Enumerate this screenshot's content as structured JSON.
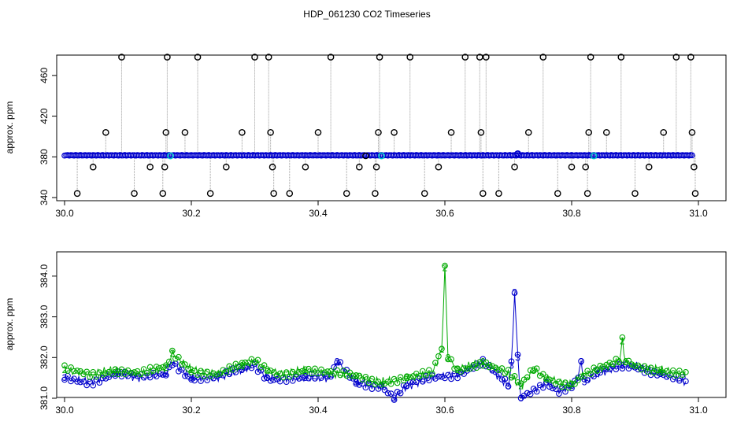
{
  "title": "HDP_061230  CO2 Timeseries",
  "chart_data": [
    {
      "type": "scatter",
      "ylabel": "approx. ppm",
      "xlabel": "",
      "xlim": [
        30.0,
        31.0
      ],
      "ylim": [
        340,
        480
      ],
      "x_ticks": [
        "30.0",
        "30.2",
        "30.4",
        "30.6",
        "30.8",
        "31.0"
      ],
      "y_ticks": [
        "340",
        "380",
        "420",
        "460"
      ],
      "grid": false,
      "colors": {
        "spikes": "#000000",
        "baseline": "#0000cc",
        "highlight": "#00c8c8",
        "drop_lines": "#9a9a9a"
      },
      "baseline_ppm": 381.5,
      "baseline_x_range": [
        30.0,
        30.99
      ],
      "spikes": [
        {
          "x": 30.02,
          "y": 344
        },
        {
          "x": 30.045,
          "y": 370
        },
        {
          "x": 30.065,
          "y": 404
        },
        {
          "x": 30.09,
          "y": 478
        },
        {
          "x": 30.11,
          "y": 344
        },
        {
          "x": 30.135,
          "y": 370
        },
        {
          "x": 30.155,
          "y": 344
        },
        {
          "x": 30.158,
          "y": 370
        },
        {
          "x": 30.16,
          "y": 404
        },
        {
          "x": 30.162,
          "y": 478
        },
        {
          "x": 30.19,
          "y": 404
        },
        {
          "x": 30.21,
          "y": 478
        },
        {
          "x": 30.23,
          "y": 344
        },
        {
          "x": 30.255,
          "y": 370
        },
        {
          "x": 30.28,
          "y": 404
        },
        {
          "x": 30.3,
          "y": 478
        },
        {
          "x": 30.322,
          "y": 478
        },
        {
          "x": 30.325,
          "y": 404
        },
        {
          "x": 30.328,
          "y": 370
        },
        {
          "x": 30.33,
          "y": 344
        },
        {
          "x": 30.355,
          "y": 344
        },
        {
          "x": 30.38,
          "y": 370
        },
        {
          "x": 30.4,
          "y": 404
        },
        {
          "x": 30.42,
          "y": 478
        },
        {
          "x": 30.445,
          "y": 344
        },
        {
          "x": 30.465,
          "y": 370
        },
        {
          "x": 30.475,
          "y": 381
        },
        {
          "x": 30.49,
          "y": 344
        },
        {
          "x": 30.492,
          "y": 370
        },
        {
          "x": 30.495,
          "y": 404
        },
        {
          "x": 30.497,
          "y": 478
        },
        {
          "x": 30.52,
          "y": 404
        },
        {
          "x": 30.545,
          "y": 478
        },
        {
          "x": 30.568,
          "y": 344
        },
        {
          "x": 30.59,
          "y": 370
        },
        {
          "x": 30.61,
          "y": 404
        },
        {
          "x": 30.632,
          "y": 478
        },
        {
          "x": 30.655,
          "y": 478
        },
        {
          "x": 30.657,
          "y": 404
        },
        {
          "x": 30.66,
          "y": 344
        },
        {
          "x": 30.665,
          "y": 478
        },
        {
          "x": 30.685,
          "y": 344
        },
        {
          "x": 30.71,
          "y": 370
        },
        {
          "x": 30.732,
          "y": 404
        },
        {
          "x": 30.755,
          "y": 478
        },
        {
          "x": 30.778,
          "y": 344
        },
        {
          "x": 30.8,
          "y": 370
        },
        {
          "x": 30.822,
          "y": 370
        },
        {
          "x": 30.825,
          "y": 344
        },
        {
          "x": 30.827,
          "y": 404
        },
        {
          "x": 30.83,
          "y": 478
        },
        {
          "x": 30.855,
          "y": 404
        },
        {
          "x": 30.878,
          "y": 478
        },
        {
          "x": 30.9,
          "y": 344
        },
        {
          "x": 30.922,
          "y": 370
        },
        {
          "x": 30.945,
          "y": 404
        },
        {
          "x": 30.965,
          "y": 478
        },
        {
          "x": 30.988,
          "y": 478
        },
        {
          "x": 30.99,
          "y": 404
        },
        {
          "x": 30.993,
          "y": 370
        },
        {
          "x": 30.995,
          "y": 344
        }
      ],
      "highlights": [
        {
          "x": 30.167,
          "y": 381
        },
        {
          "x": 30.5,
          "y": 381
        },
        {
          "x": 30.835,
          "y": 381
        }
      ]
    },
    {
      "type": "line",
      "ylabel": "approx. ppm",
      "xlabel": "",
      "xlim": [
        30.0,
        31.0
      ],
      "ylim": [
        381.0,
        384.5
      ],
      "x_ticks": [
        "30.0",
        "30.2",
        "30.4",
        "30.6",
        "30.8",
        "31.0"
      ],
      "y_ticks": [
        "381.0",
        "382.0",
        "383.0",
        "384.0"
      ],
      "grid": false,
      "marker_labels": {
        "series2": "2",
        "series3": "3"
      },
      "colors": {
        "series2": "#00aa00",
        "series3": "#0000cc"
      },
      "series": [
        {
          "key": "2",
          "x": [
            30.0,
            30.04,
            30.08,
            30.12,
            30.16,
            30.17,
            30.2,
            30.24,
            30.28,
            30.3,
            30.32,
            30.34,
            30.38,
            30.42,
            30.46,
            30.5,
            30.54,
            30.58,
            30.595,
            30.6,
            30.605,
            30.62,
            30.66,
            30.7,
            30.72,
            30.74,
            30.76,
            30.78,
            30.8,
            30.82,
            30.84,
            30.86,
            30.875,
            30.88,
            30.885,
            30.9,
            30.94,
            30.98
          ],
          "values": [
            381.7,
            381.6,
            381.7,
            381.6,
            381.75,
            382.1,
            381.7,
            381.6,
            381.8,
            381.9,
            381.7,
            381.6,
            381.7,
            381.6,
            381.55,
            381.4,
            381.5,
            381.6,
            382.2,
            384.2,
            382.0,
            381.7,
            381.9,
            381.6,
            381.3,
            381.7,
            381.5,
            381.4,
            381.35,
            381.6,
            381.7,
            381.8,
            381.9,
            382.4,
            381.9,
            381.8,
            381.7,
            381.6
          ]
        },
        {
          "key": "3",
          "x": [
            30.0,
            30.04,
            30.08,
            30.12,
            30.16,
            30.17,
            30.2,
            30.24,
            30.28,
            30.3,
            30.32,
            30.34,
            30.38,
            30.42,
            30.43,
            30.46,
            30.5,
            30.52,
            30.54,
            30.58,
            30.62,
            30.66,
            30.7,
            30.705,
            30.71,
            30.715,
            30.72,
            30.74,
            30.76,
            30.78,
            30.8,
            30.81,
            30.815,
            30.82,
            30.84,
            30.86,
            30.88,
            30.9,
            30.94,
            30.98
          ],
          "values": [
            381.5,
            381.4,
            381.6,
            381.5,
            381.6,
            381.9,
            381.5,
            381.5,
            381.7,
            381.8,
            381.5,
            381.5,
            381.5,
            381.5,
            381.9,
            381.4,
            381.3,
            381.0,
            381.3,
            381.5,
            381.6,
            381.9,
            381.3,
            381.8,
            383.6,
            382.0,
            381.0,
            381.2,
            381.4,
            381.2,
            381.3,
            381.5,
            381.9,
            381.4,
            381.6,
            381.7,
            381.8,
            381.8,
            381.6,
            381.4
          ]
        }
      ]
    }
  ]
}
